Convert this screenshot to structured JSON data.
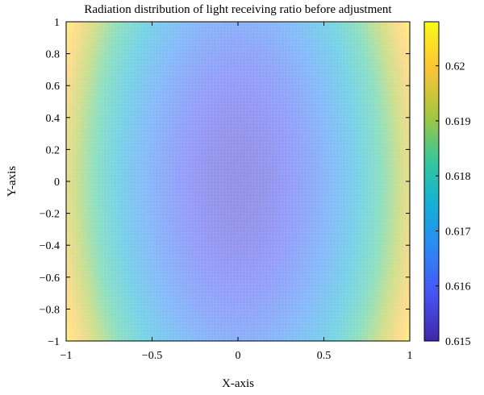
{
  "chart_data": {
    "type": "heatmap",
    "title": "Radiation distribution of light receiving ratio before adjustment",
    "xlabel": "X-axis",
    "ylabel": "Y-axis",
    "xlim": [
      -1,
      1
    ],
    "ylim": [
      -1,
      1
    ],
    "x_ticks": [
      -1,
      -0.5,
      0,
      0.5,
      1
    ],
    "x_tick_labels": [
      "−1",
      "−0.5",
      "0",
      "0.5",
      "1"
    ],
    "y_ticks": [
      -1,
      -0.8,
      -0.6,
      -0.4,
      -0.2,
      0,
      0.2,
      0.4,
      0.6,
      0.8,
      1
    ],
    "y_tick_labels": [
      "−1",
      "−0.8",
      "−0.6",
      "−0.4",
      "−0.2",
      "0",
      "0.2",
      "0.4",
      "0.6",
      "0.8",
      "1"
    ],
    "colorbar": {
      "range": [
        0.615,
        0.6628
      ],
      "ticks": [
        0.615,
        0.616,
        0.617,
        0.618,
        0.619,
        0.62
      ],
      "tick_labels": [
        "0.615",
        "0.616",
        "0.617",
        "0.618",
        "0.619",
        "0.62"
      ],
      "display_min": 0.615,
      "display_max": 0.6208
    },
    "colormap": "parula",
    "surface": {
      "description_function": "value = min + (max-min) * f(x,y)",
      "center_value": 0.6155,
      "corner_value": 0.6205,
      "x_weight": 1.0,
      "y_weight": 0.22
    },
    "grid": true,
    "grid_resolution": 100
  }
}
